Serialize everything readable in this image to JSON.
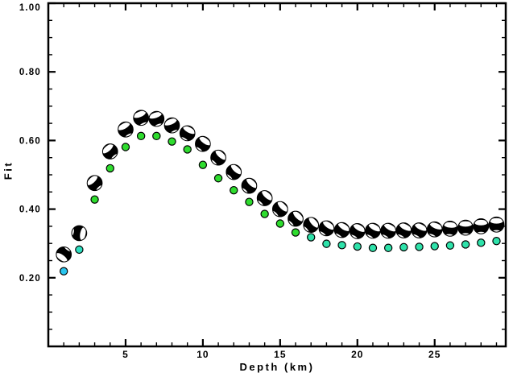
{
  "chart_data": {
    "type": "scatter",
    "xlabel": "Depth (km)",
    "ylabel": "Fit",
    "xlim": [
      0,
      29.6
    ],
    "ylim": [
      0,
      1.0
    ],
    "x_major_ticks": [
      5,
      10,
      15,
      20,
      25
    ],
    "x_minor_tick_step": 1,
    "y_major_ticks": [
      0.2,
      0.4,
      0.6,
      0.8,
      1.0
    ],
    "y_minor_tick_step": 0.05,
    "y_tick_decimals": 2,
    "grid": false,
    "legend": "none",
    "frame": "box-with-inward-ticks",
    "x": [
      1,
      2,
      3,
      4,
      5,
      6,
      7,
      8,
      9,
      10,
      11,
      12,
      13,
      14,
      15,
      16,
      17,
      18,
      19,
      20,
      21,
      22,
      23,
      24,
      25,
      26,
      27,
      28,
      29
    ],
    "series": [
      {
        "name": "focal-mechanism-beachballs",
        "marker": "beachball",
        "fill": "#000000",
        "lens_fill": "#ffffff",
        "values": [
          0.268,
          0.33,
          0.476,
          0.568,
          0.632,
          0.666,
          0.663,
          0.644,
          0.621,
          0.59,
          0.55,
          0.508,
          0.468,
          0.432,
          0.4,
          0.372,
          0.354,
          0.344,
          0.339,
          0.336,
          0.337,
          0.337,
          0.338,
          0.338,
          0.341,
          0.343,
          0.346,
          0.35,
          0.355
        ],
        "lens_angles_deg": [
          215,
          100,
          -42,
          -40,
          -28,
          -22,
          -18,
          -22,
          28,
          35,
          42,
          42,
          42,
          42,
          45,
          45,
          48,
          35,
          32,
          30,
          28,
          28,
          26,
          26,
          22,
          5,
          0,
          0,
          0
        ]
      },
      {
        "name": "small-colored-circles",
        "marker": "circle",
        "stroke": "#000000",
        "values": [
          0.219,
          0.282,
          0.428,
          0.519,
          0.581,
          0.613,
          0.613,
          0.597,
          0.574,
          0.529,
          0.49,
          0.455,
          0.421,
          0.386,
          0.358,
          0.332,
          0.318,
          0.299,
          0.295,
          0.291,
          0.287,
          0.287,
          0.289,
          0.29,
          0.292,
          0.294,
          0.297,
          0.302,
          0.307
        ],
        "colors": [
          "#29C5EE",
          "#2EDEC0",
          "#2EDC2E",
          "#2EDC2E",
          "#2EDC2E",
          "#2EDC2E",
          "#2EDC2E",
          "#2EDC2E",
          "#2EDC2E",
          "#2EDC2E",
          "#2EDC2E",
          "#2EDC2E",
          "#2EDC2E",
          "#2EDC2E",
          "#2EDC2E",
          "#2EDC2E",
          "#2EE2AA",
          "#2EE2AA",
          "#2EE2AA",
          "#2EE2AA",
          "#2EE2AA",
          "#2EE2AA",
          "#2EE2AA",
          "#2EE2AA",
          "#2EE2AA",
          "#2EE2AA",
          "#2EE2AA",
          "#2EE2AA",
          "#2EE2AA"
        ]
      }
    ],
    "axis_color": "#000000",
    "background_color": "#ffffff"
  }
}
